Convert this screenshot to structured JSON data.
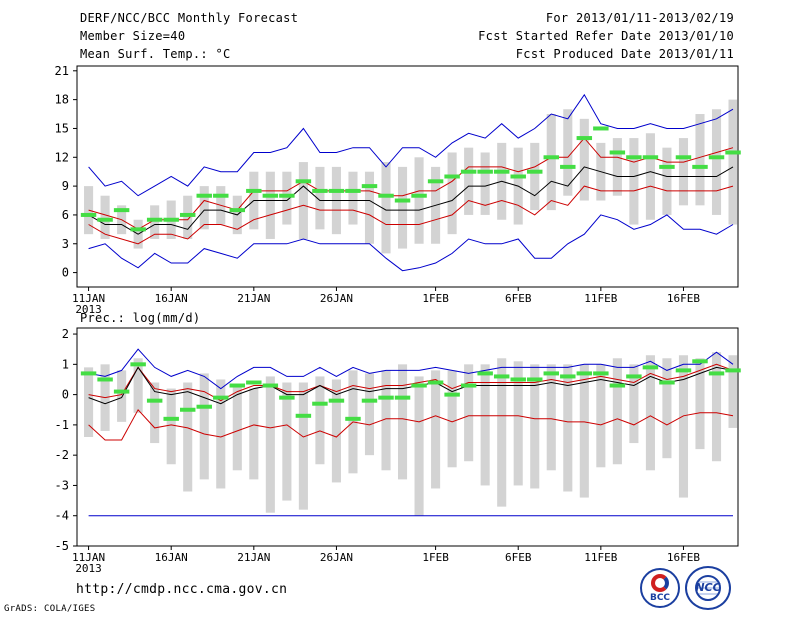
{
  "header": {
    "title": "DERF/NCC/BCC Monthly Forecast",
    "member_size": "Member Size=40",
    "variable1": "Mean Surf. Temp.: °C",
    "period": "For 2013/01/11-2013/02/19",
    "started": "Fcst Started Refer Date 2013/01/10",
    "produced": "Fcst Produced Date 2013/01/11",
    "variable2": "Prec.: log(mm/d)"
  },
  "footer": {
    "url": "http://cmdp.ncc.cma.gov.cn",
    "grads": "GrADS: COLA/IGES",
    "logo1_label": "BCC",
    "logo2_label": "NCC"
  },
  "colors": {
    "max": "#0000cc",
    "min": "#0000cc",
    "upper": "#cc0000",
    "lower": "#cc0000",
    "mean": "#000000",
    "box": "#d3d3d3",
    "median": "#44dd44"
  },
  "chart_data": [
    {
      "type": "line",
      "title": "Mean Surf. Temp.: °C",
      "x_tick_labels": [
        "11JAN",
        "16JAN",
        "21JAN",
        "26JAN",
        "1FEB",
        "6FEB",
        "11FEB",
        "16FEB"
      ],
      "x_year_label": "2013",
      "x_tick_days": [
        1,
        6,
        11,
        16,
        22,
        27,
        32,
        37
      ],
      "xlim": [
        0.3,
        40.3
      ],
      "ylim": [
        -1.5,
        21.5
      ],
      "y_ticks": [
        0,
        3,
        6,
        9,
        12,
        15,
        18,
        21
      ],
      "days": [
        1,
        2,
        3,
        4,
        5,
        6,
        7,
        8,
        9,
        10,
        11,
        12,
        13,
        14,
        15,
        16,
        17,
        18,
        19,
        20,
        21,
        22,
        23,
        24,
        25,
        26,
        27,
        28,
        29,
        30,
        31,
        32,
        33,
        34,
        35,
        36,
        37,
        38,
        39,
        40
      ],
      "series": [
        {
          "name": "max",
          "values": [
            11.0,
            9.0,
            9.5,
            8.0,
            9.0,
            10.0,
            9.0,
            11.0,
            10.5,
            10.5,
            12.5,
            12.5,
            13.0,
            15.0,
            12.5,
            12.5,
            13.0,
            13.0,
            11.0,
            13.0,
            13.0,
            12.0,
            13.5,
            14.5,
            14.0,
            15.5,
            14.0,
            15.0,
            16.5,
            16.0,
            18.5,
            15.5,
            15.0,
            15.0,
            15.5,
            15.0,
            15.0,
            15.5,
            16.0,
            17.0
          ]
        },
        {
          "name": "upper",
          "values": [
            6.5,
            6.0,
            5.5,
            4.5,
            5.5,
            5.5,
            5.5,
            7.5,
            7.0,
            6.5,
            8.5,
            8.5,
            8.5,
            9.5,
            8.5,
            8.5,
            8.5,
            8.5,
            8.0,
            8.0,
            8.5,
            8.5,
            9.5,
            11.0,
            11.0,
            11.0,
            10.5,
            11.0,
            12.0,
            12.0,
            14.0,
            12.0,
            12.0,
            11.5,
            12.0,
            11.5,
            11.5,
            12.0,
            12.5,
            13.0
          ]
        },
        {
          "name": "mean",
          "values": [
            6.0,
            5.0,
            5.0,
            4.0,
            5.0,
            5.0,
            4.5,
            6.5,
            6.5,
            6.0,
            7.5,
            7.5,
            7.5,
            9.0,
            7.5,
            7.5,
            7.5,
            7.5,
            6.5,
            6.5,
            6.5,
            7.0,
            7.5,
            9.0,
            9.0,
            9.5,
            9.0,
            8.0,
            9.5,
            9.0,
            11.0,
            10.5,
            10.0,
            10.0,
            10.5,
            10.0,
            10.0,
            10.0,
            10.0,
            11.0
          ]
        },
        {
          "name": "lower",
          "values": [
            5.0,
            4.0,
            3.5,
            3.0,
            4.0,
            4.0,
            3.5,
            5.0,
            5.0,
            4.5,
            5.5,
            6.0,
            6.5,
            7.0,
            6.5,
            6.5,
            6.5,
            6.0,
            5.0,
            5.0,
            5.0,
            5.5,
            6.0,
            7.5,
            7.0,
            7.5,
            7.0,
            6.0,
            7.5,
            7.0,
            9.0,
            8.5,
            8.5,
            8.5,
            9.0,
            8.5,
            8.5,
            8.5,
            8.5,
            9.0
          ]
        },
        {
          "name": "min",
          "values": [
            2.5,
            3.0,
            1.5,
            0.5,
            2.0,
            1.0,
            1.0,
            2.5,
            2.0,
            1.5,
            3.0,
            3.0,
            3.0,
            3.5,
            3.0,
            3.0,
            3.0,
            3.0,
            1.5,
            0.2,
            0.5,
            1.0,
            2.0,
            3.5,
            3.0,
            3.0,
            3.5,
            1.5,
            1.5,
            3.0,
            4.0,
            6.0,
            5.5,
            4.5,
            5.0,
            6.0,
            4.5,
            4.5,
            4.0,
            5.0
          ]
        },
        {
          "name": "median",
          "values": [
            6.0,
            5.5,
            6.5,
            4.5,
            5.5,
            5.5,
            6.0,
            8.0,
            8.0,
            6.5,
            8.5,
            8.0,
            8.0,
            9.5,
            8.5,
            8.5,
            8.5,
            9.0,
            8.0,
            7.5,
            8.0,
            9.5,
            10.0,
            10.5,
            10.5,
            10.5,
            10.0,
            10.5,
            12.0,
            11.0,
            14.0,
            15.0,
            12.5,
            12.0,
            12.0,
            11.0,
            12.0,
            11.0,
            12.0,
            12.5
          ]
        }
      ],
      "box_low": [
        4.0,
        3.5,
        4.0,
        2.5,
        3.5,
        3.5,
        3.5,
        4.5,
        5.0,
        4.0,
        4.5,
        3.5,
        5.0,
        3.5,
        4.5,
        4.0,
        5.0,
        3.0,
        2.0,
        2.5,
        3.0,
        3.0,
        4.0,
        6.0,
        6.0,
        5.5,
        5.0,
        6.5,
        6.5,
        8.0,
        7.5,
        7.5,
        8.0,
        5.0,
        5.5,
        6.0,
        7.0,
        7.0,
        6.0,
        5.0
      ],
      "box_high": [
        9.0,
        8.0,
        7.0,
        5.5,
        7.0,
        7.5,
        8.0,
        9.0,
        9.0,
        8.0,
        10.5,
        10.5,
        10.5,
        11.5,
        11.0,
        11.0,
        10.5,
        10.5,
        11.5,
        11.0,
        12.0,
        11.0,
        12.5,
        13.0,
        12.5,
        13.5,
        13.0,
        13.5,
        16.5,
        17.0,
        16.0,
        13.5,
        14.0,
        14.0,
        14.5,
        13.0,
        14.0,
        16.5,
        17.0,
        18.0
      ]
    },
    {
      "type": "line",
      "title": "Prec.: log(mm/d)",
      "x_tick_labels": [
        "11JAN",
        "16JAN",
        "21JAN",
        "26JAN",
        "1FEB",
        "6FEB",
        "11FEB",
        "16FEB"
      ],
      "x_year_label": "2013",
      "x_tick_days": [
        1,
        6,
        11,
        16,
        22,
        27,
        32,
        37
      ],
      "xlim": [
        0.3,
        40.3
      ],
      "ylim": [
        -5,
        2.2
      ],
      "y_ticks": [
        -5,
        -4,
        -3,
        -2,
        -1,
        0,
        1,
        2
      ],
      "days": [
        1,
        2,
        3,
        4,
        5,
        6,
        7,
        8,
        9,
        10,
        11,
        12,
        13,
        14,
        15,
        16,
        17,
        18,
        19,
        20,
        21,
        22,
        23,
        24,
        25,
        26,
        27,
        28,
        29,
        30,
        31,
        32,
        33,
        34,
        35,
        36,
        37,
        38,
        39,
        40
      ],
      "series": [
        {
          "name": "max",
          "values": [
            0.7,
            0.6,
            0.8,
            1.5,
            0.9,
            0.6,
            0.8,
            0.6,
            0.2,
            0.6,
            0.9,
            0.9,
            0.6,
            0.6,
            0.9,
            0.6,
            0.9,
            0.7,
            0.8,
            0.8,
            0.8,
            0.9,
            0.8,
            0.7,
            0.8,
            0.9,
            0.9,
            0.9,
            0.9,
            0.9,
            1.0,
            1.0,
            0.9,
            0.9,
            1.1,
            0.8,
            1.0,
            1.0,
            1.4,
            1.0
          ]
        },
        {
          "name": "upper",
          "values": [
            0.0,
            -0.1,
            0.0,
            0.9,
            0.2,
            0.1,
            0.2,
            0.1,
            -0.2,
            0.1,
            0.3,
            0.3,
            0.1,
            0.1,
            0.3,
            0.1,
            0.3,
            0.2,
            0.3,
            0.3,
            0.4,
            0.5,
            0.2,
            0.4,
            0.4,
            0.4,
            0.4,
            0.4,
            0.5,
            0.4,
            0.5,
            0.6,
            0.5,
            0.4,
            0.7,
            0.5,
            0.6,
            0.8,
            1.0,
            0.8
          ]
        },
        {
          "name": "mean",
          "values": [
            -0.1,
            -0.3,
            -0.1,
            0.9,
            0.1,
            0.0,
            0.1,
            -0.1,
            -0.3,
            0.0,
            0.2,
            0.3,
            0.0,
            0.0,
            0.3,
            0.0,
            0.2,
            0.1,
            0.2,
            0.2,
            0.3,
            0.4,
            0.1,
            0.3,
            0.3,
            0.3,
            0.3,
            0.3,
            0.4,
            0.3,
            0.4,
            0.5,
            0.4,
            0.3,
            0.6,
            0.4,
            0.5,
            0.7,
            0.9,
            0.8
          ]
        },
        {
          "name": "lower",
          "values": [
            -1.0,
            -1.5,
            -1.5,
            -0.5,
            -1.1,
            -1.0,
            -1.1,
            -1.3,
            -1.4,
            -1.2,
            -1.0,
            -1.1,
            -1.0,
            -1.4,
            -1.2,
            -1.4,
            -0.9,
            -1.0,
            -0.8,
            -0.8,
            -0.9,
            -0.7,
            -0.9,
            -0.7,
            -0.7,
            -0.7,
            -0.7,
            -0.8,
            -0.8,
            -0.9,
            -0.9,
            -1.0,
            -0.8,
            -1.0,
            -0.7,
            -1.0,
            -0.7,
            -0.6,
            -0.6,
            -0.7
          ]
        },
        {
          "name": "min",
          "values": [
            -4,
            -4,
            -4,
            -4,
            -4,
            -4,
            -4,
            -4,
            -4,
            -4,
            -4,
            -4,
            -4,
            -4,
            -4,
            -4,
            -4,
            -4,
            -4,
            -4,
            -4,
            -4,
            -4,
            -4,
            -4,
            -4,
            -4,
            -4,
            -4,
            -4,
            -4,
            -4,
            -4,
            -4,
            -4,
            -4,
            -4,
            -4,
            -4,
            -4
          ]
        },
        {
          "name": "median",
          "values": [
            0.7,
            0.5,
            0.1,
            1.0,
            -0.2,
            -0.8,
            -0.5,
            -0.4,
            -0.1,
            0.3,
            0.4,
            0.3,
            -0.1,
            -0.7,
            -0.3,
            -0.2,
            -0.8,
            -0.2,
            -0.1,
            -0.1,
            0.3,
            0.4,
            0.0,
            0.3,
            0.7,
            0.6,
            0.5,
            0.5,
            0.7,
            0.6,
            0.7,
            0.7,
            0.3,
            0.6,
            0.9,
            0.4,
            0.8,
            1.1,
            0.7,
            0.8
          ]
        }
      ],
      "box_low": [
        -1.4,
        -1.2,
        -0.9,
        -0.6,
        -1.6,
        -2.3,
        -3.2,
        -2.8,
        -3.1,
        -2.5,
        -2.8,
        -3.9,
        -3.5,
        -3.8,
        -2.3,
        -2.9,
        -2.6,
        -2.0,
        -2.5,
        -2.8,
        -4.0,
        -3.1,
        -2.4,
        -2.2,
        -3.0,
        -3.7,
        -3.0,
        -3.1,
        -2.5,
        -3.2,
        -3.4,
        -2.4,
        -2.3,
        -1.6,
        -2.5,
        -2.1,
        -3.4,
        -1.8,
        -2.2,
        -1.1
      ],
      "box_high": [
        0.9,
        1.0,
        0.8,
        1.2,
        0.4,
        0.2,
        0.4,
        0.7,
        0.5,
        0.3,
        0.2,
        0.6,
        0.4,
        0.4,
        0.6,
        0.5,
        0.8,
        0.7,
        0.8,
        1.0,
        0.6,
        0.8,
        0.8,
        1.0,
        1.0,
        1.2,
        1.1,
        1.0,
        1.0,
        1.0,
        1.0,
        1.0,
        1.2,
        1.0,
        1.3,
        1.2,
        1.3,
        1.2,
        1.4,
        1.3
      ]
    }
  ]
}
